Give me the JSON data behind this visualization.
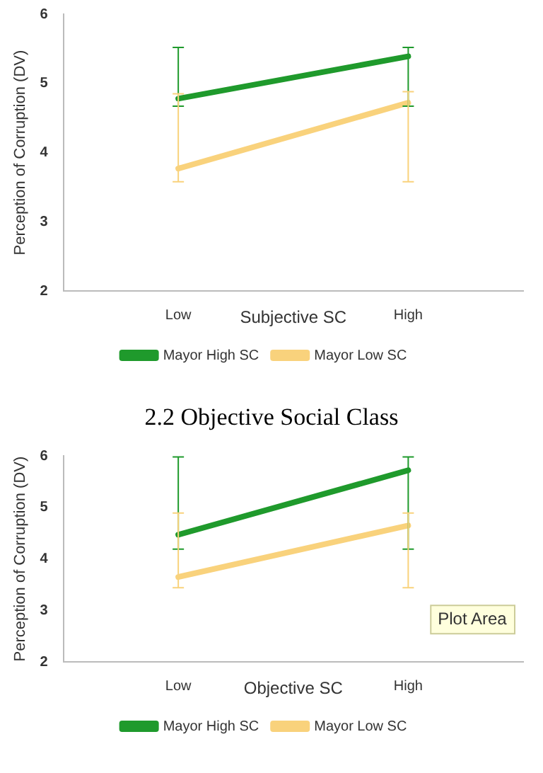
{
  "chart_data": [
    {
      "type": "line",
      "categories": [
        "Low",
        "High"
      ],
      "xlabel": "Subjective SC",
      "ylabel": "Perception of Corruption (DV)",
      "ylim": [
        2,
        6
      ],
      "yticks": [
        2,
        3,
        4,
        5,
        6
      ],
      "grid": false,
      "legend": "bottom",
      "marker": "none",
      "line_style": "solid",
      "series": [
        {
          "name": "Mayor High SC",
          "color": "#1f9a2c",
          "values": [
            4.78,
            5.39
          ],
          "errors": [
            [
              4.67,
              5.52
            ],
            [
              4.67,
              5.52
            ]
          ]
        },
        {
          "name": "Mayor Low SC",
          "color": "#f9d27c",
          "values": [
            3.77,
            4.72
          ],
          "errors": [
            [
              3.58,
              4.85
            ],
            [
              3.58,
              4.88
            ]
          ]
        }
      ]
    },
    {
      "type": "line",
      "title": "2.2 Objective Social Class",
      "categories": [
        "Low",
        "High"
      ],
      "xlabel": "Objective SC",
      "ylabel": "Perception of Corruption (DV)",
      "ylim": [
        2,
        6
      ],
      "yticks": [
        2,
        3,
        4,
        5,
        6
      ],
      "grid": false,
      "legend": "bottom",
      "marker": "none",
      "line_style": "solid",
      "annotations": [
        "Plot Area"
      ],
      "series": [
        {
          "name": "Mayor High SC",
          "color": "#1f9a2c",
          "values": [
            4.47,
            5.72
          ],
          "errors": [
            [
              4.19,
              5.98
            ],
            [
              4.19,
              5.98
            ]
          ]
        },
        {
          "name": "Mayor Low SC",
          "color": "#f9d27c",
          "values": [
            3.65,
            4.65
          ],
          "errors": [
            [
              3.44,
              4.89
            ],
            [
              3.44,
              4.89
            ]
          ]
        }
      ]
    }
  ]
}
